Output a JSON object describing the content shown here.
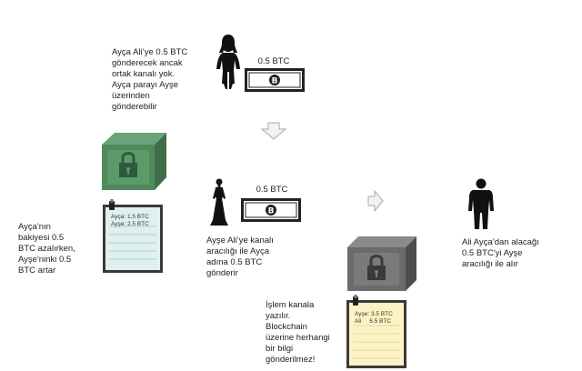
{
  "texts": {
    "ayca_intro": [
      "Ayça Ali’ye 0.5 BTC",
      "gönderecek ancak",
      "ortak kanalı yok.",
      "Ayça parayı Ayşe",
      "üzerinden",
      "gönderebilir"
    ],
    "ayca_balance": [
      "Ayça'nın",
      "bakiyesi 0.5",
      "BTC azalırken,",
      "Ayşe'ninki 0.5",
      "BTC artar"
    ],
    "ayse_sends": [
      "Ayşe Ali’ye kanalı",
      "aracılığı ile Ayça",
      "adına 0.5 BTC",
      "gönderir"
    ],
    "ali_receives": [
      "Ali Ayça’dan alacağı",
      "0.5 BTC'yi Ayşe",
      "aracılığı ile alır"
    ],
    "channel_note": [
      "İşlem kanala",
      "yazılır.",
      "Blockchain",
      "üzerine herhangi",
      "bir bilgi",
      "gönderilmez!"
    ]
  },
  "bills": {
    "top": {
      "amount": "0.5 BTC"
    },
    "middle": {
      "amount": "0.5 BTC"
    }
  },
  "notes": {
    "green_note": {
      "lines": [
        "Ayça: 1.5 BTC",
        "Ayşe: 2.5 BTC"
      ]
    },
    "yellow_note": {
      "lines": [
        "Ayşe: 3.5 BTC",
        "Ali     6.5 BTC"
      ]
    }
  },
  "colors": {
    "green_box": "#4f8a5c",
    "gray_box": "#6b6b6b",
    "green_note_bg": "#dff0ee",
    "yellow_note_bg": "#fbf3c4",
    "arrow": "#cfcfcf"
  },
  "icons": [
    "woman-silhouette-icon",
    "man-silhouette-icon",
    "bitcoin-bill-icon",
    "lock-box-icon",
    "clipboard-note-icon",
    "down-arrow-icon",
    "right-arrow-icon"
  ]
}
